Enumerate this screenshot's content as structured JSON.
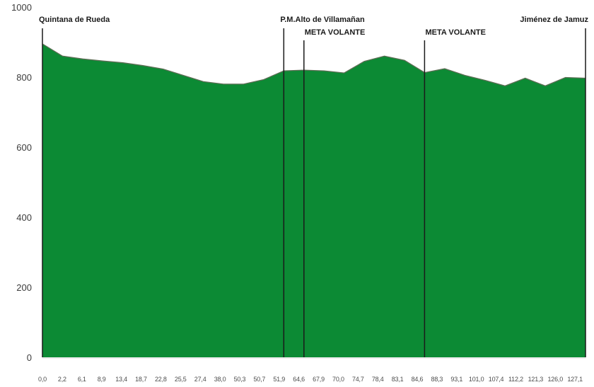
{
  "chart_data": {
    "type": "area",
    "title": "",
    "xlabel": "",
    "ylabel": "",
    "x_labels": [
      "0,0",
      "2,2",
      "6,1",
      "8,9",
      "13,4",
      "18,7",
      "22,8",
      "25,5",
      "27,4",
      "38,0",
      "50,3",
      "50,7",
      "51,9",
      "64,6",
      "67,9",
      "70,0",
      "74,7",
      "78,4",
      "83,1",
      "84,6",
      "88,3",
      "93,1",
      "101,0",
      "107,4",
      "112,2",
      "121,3",
      "126,0",
      "127,1"
    ],
    "elevations": [
      895,
      860,
      852,
      846,
      841,
      833,
      823,
      805,
      787,
      780,
      780,
      793,
      818,
      820,
      818,
      812,
      845,
      860,
      848,
      813,
      824,
      805,
      791,
      775,
      797,
      775,
      799,
      797
    ],
    "y_ticks": [
      1000,
      800,
      600,
      400,
      200,
      0
    ],
    "ylim": [
      0,
      1000
    ],
    "grid": "off",
    "legend": "none",
    "area_color": "#0C8A34",
    "edge_color": "#5D6E55",
    "marker_line_color": "#1A1A1A",
    "baseline_color": "#D9D9D9",
    "markers": [
      {
        "index": 0,
        "label": "Quintana de Rueda",
        "align": "left",
        "row": 1
      },
      {
        "index": 12,
        "label": "P.M.Alto de Villamañan",
        "align": "left",
        "row": 1
      },
      {
        "index": 13,
        "label": "META VOLANTE",
        "align": "left",
        "row": 2
      },
      {
        "index": 19,
        "label": "META VOLANTE",
        "align": "left",
        "row": 2
      },
      {
        "index": 27,
        "label": "Jiménez de Jamuz",
        "align": "right",
        "row": 1
      }
    ]
  }
}
